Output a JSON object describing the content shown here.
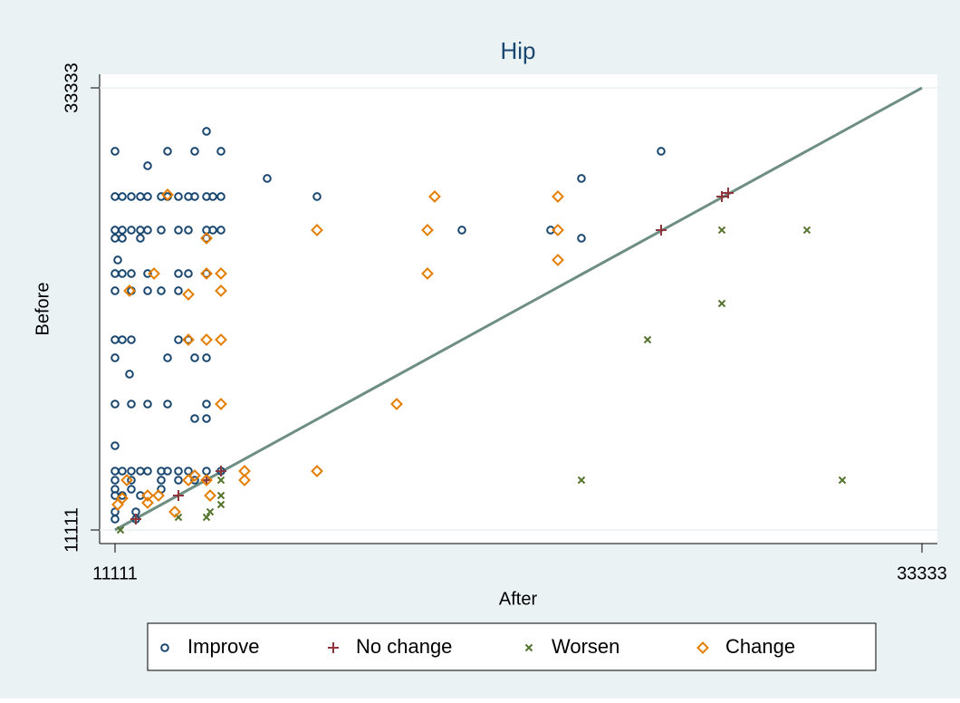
{
  "chart_data": {
    "type": "scatter",
    "title": "Hip",
    "x_label": "After",
    "y_label": "Before",
    "xlim": [
      11111,
      33333
    ],
    "ylim": [
      11111,
      33333
    ],
    "xticks": [
      11111,
      33333
    ],
    "yticks": [
      11111,
      33333
    ],
    "reference_line_color": "#6e8e84",
    "grid": true,
    "legend": "bottom",
    "series": [
      {
        "name": "Improve",
        "marker": "circle",
        "color": "#1a476f",
        "x": [
          11111,
          12558,
          13306,
          14029,
          26150,
          13630,
          12009,
          15301,
          23955,
          11111,
          11311,
          11560,
          11809,
          12009,
          12383,
          12558,
          12857,
          13131,
          13306,
          13630,
          13805,
          14029,
          16673,
          11111,
          11311,
          11560,
          11809,
          12009,
          12383,
          12857,
          13131,
          13630,
          13805,
          14029,
          20663,
          23107,
          11111,
          11311,
          11809,
          13630,
          23955,
          11186,
          11111,
          11311,
          11560,
          12009,
          12857,
          13131,
          13630,
          11111,
          11560,
          12009,
          12383,
          12857,
          11111,
          11311,
          11560,
          12857,
          13131,
          11111,
          12558,
          13306,
          13630,
          11510,
          11111,
          11560,
          12009,
          12558,
          13630,
          13306,
          13630,
          11111,
          11111,
          11311,
          11560,
          11809,
          12009,
          12383,
          12558,
          12857,
          13131,
          13630,
          14029,
          11111,
          11560,
          12383,
          12857,
          13306,
          11111,
          11560,
          12383,
          11111,
          11311,
          11809,
          11111,
          11685,
          11111,
          11685
        ],
        "y": [
          30147,
          30147,
          30147,
          30147,
          30147,
          31149,
          29418,
          28781,
          28781,
          27870,
          27870,
          27870,
          27870,
          27870,
          27870,
          27870,
          27870,
          27870,
          27870,
          27870,
          27870,
          27870,
          27870,
          26185,
          26185,
          26185,
          26185,
          26185,
          26185,
          26185,
          26185,
          26185,
          26185,
          26185,
          26185,
          26185,
          25775,
          25775,
          25775,
          25775,
          25775,
          24682,
          23999,
          23999,
          23999,
          23999,
          23999,
          23999,
          23999,
          23134,
          23134,
          23134,
          23134,
          23134,
          20674,
          20674,
          20674,
          20674,
          20674,
          19764,
          19764,
          19764,
          19764,
          18944,
          17441,
          17441,
          17441,
          17441,
          17441,
          16712,
          16712,
          15346,
          14071,
          14071,
          14071,
          14071,
          14071,
          14071,
          14071,
          14071,
          14071,
          14071,
          14071,
          13616,
          13616,
          13616,
          13616,
          13616,
          13160,
          13160,
          13160,
          12842,
          12842,
          12842,
          12022,
          12022,
          11657,
          11657
        ]
      },
      {
        "name": "No change",
        "marker": "plus",
        "color": "#90353b",
        "x": [
          11685,
          12857,
          14029,
          26150,
          27822,
          27996,
          13630
        ],
        "y": [
          11657,
          12842,
          14071,
          26185,
          27870,
          28053,
          13616
        ]
      },
      {
        "name": "Worsen",
        "marker": "x",
        "color": "#55752f",
        "x": [
          11261,
          12857,
          13630,
          13730,
          14029,
          14029,
          14029,
          23955,
          25776,
          27822,
          27822,
          30165,
          31138
        ],
        "y": [
          11111,
          11749,
          11749,
          12022,
          12842,
          12386,
          13616,
          13616,
          20674,
          26185,
          22496,
          26185,
          13616
        ]
      },
      {
        "name": "Change",
        "marker": "diamond",
        "color": "#e37e00",
        "x": [
          12558,
          19914,
          23307,
          16673,
          19715,
          23307,
          13630,
          23307,
          19715,
          12184,
          13630,
          14029,
          11510,
          13131,
          14029,
          13131,
          13630,
          14029,
          14029,
          18867,
          16673,
          14677,
          14677,
          11435,
          13131,
          13630,
          13306,
          12009,
          12308,
          13730,
          11186,
          11311,
          12757,
          12009
        ],
        "y": [
          27961,
          27870,
          27870,
          26185,
          26185,
          26185,
          25775,
          24682,
          23999,
          23999,
          23999,
          23999,
          23134,
          22951,
          23134,
          20674,
          20674,
          20674,
          17441,
          17441,
          14071,
          14071,
          13616,
          13616,
          13616,
          13616,
          13843,
          12842,
          12842,
          12842,
          12386,
          12705,
          12022,
          12477
        ]
      }
    ]
  }
}
